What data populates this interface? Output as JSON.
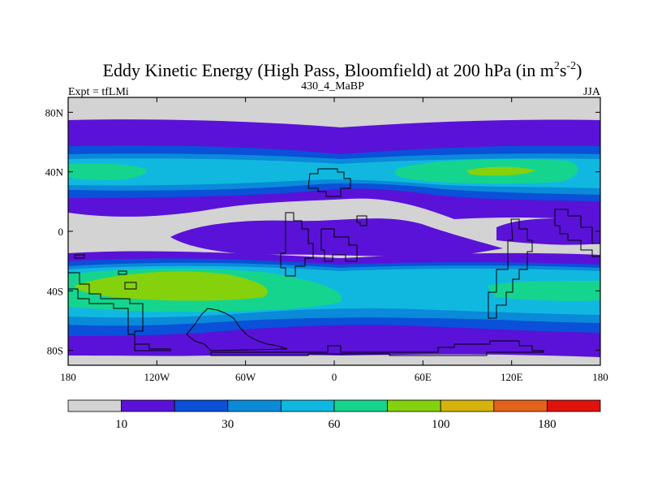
{
  "title": {
    "main": "Eddy Kinetic Energy (High Pass, Bloomfield) at 200 hPa (in m",
    "sup1": "2",
    "mid": "s",
    "sup2": "-2",
    "close": ")"
  },
  "left_label": "Expt = tfLMi",
  "center_label": "430_4_MaBP",
  "right_label": "JJA",
  "map": {
    "projection": "cylindrical equidistant",
    "lon_range": [
      -180,
      180
    ],
    "lat_range": [
      -90,
      90
    ],
    "x_ticks": [
      "180",
      "120W",
      "60W",
      "0",
      "60E",
      "120E",
      "180"
    ],
    "y_ticks": [
      "80N",
      "40N",
      "0",
      "40S",
      "80S"
    ],
    "coastlines": true
  },
  "colorbar": {
    "colors": [
      "#d3d3d3",
      "#5a12d8",
      "#0a50d8",
      "#0a8ad8",
      "#10b8e0",
      "#15d58e",
      "#85d10c",
      "#d6b20c",
      "#e4621a",
      "#e0120c"
    ],
    "labels": [
      "10",
      "30",
      "60",
      "100",
      "180"
    ]
  },
  "legend_colors": {
    "land_outline": "#000000",
    "below_10": "#d3d3d3",
    "band_10_20": "#5a12d8",
    "band_20_30": "#0a50d8",
    "band_30_45": "#0a8ad8",
    "band_45_60": "#10b8e0",
    "band_60_80": "#15d58e",
    "band_80_100": "#85d10c"
  }
}
